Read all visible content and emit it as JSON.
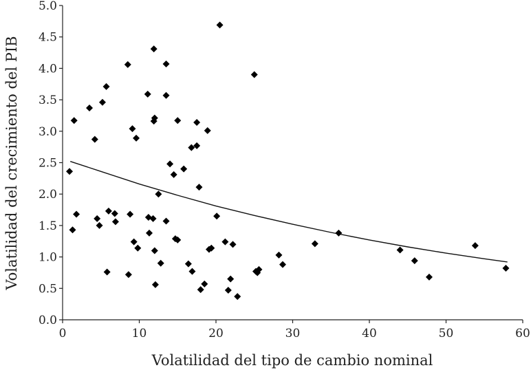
{
  "chart_data": {
    "type": "scatter",
    "xlabel": "Volatilidad del tipo de cambio nominal",
    "ylabel": "Volatilidad del crecimiento del PIB",
    "xlim": [
      0,
      60
    ],
    "ylim": [
      0,
      5
    ],
    "x_ticks": [
      "0",
      "10",
      "20",
      "30",
      "40",
      "50",
      "60"
    ],
    "y_ticks": [
      "0.0",
      "0.5",
      "1.0",
      "1.5",
      "2.0",
      "2.5",
      "3.0",
      "3.5",
      "4.0",
      "4.5",
      "5.0"
    ],
    "grid": false,
    "legend": "none",
    "points": [
      {
        "x": 0.9,
        "y": 2.36
      },
      {
        "x": 1.3,
        "y": 1.43
      },
      {
        "x": 1.5,
        "y": 3.17
      },
      {
        "x": 1.8,
        "y": 1.68
      },
      {
        "x": 3.5,
        "y": 3.37
      },
      {
        "x": 4.2,
        "y": 2.87
      },
      {
        "x": 4.5,
        "y": 1.61
      },
      {
        "x": 4.8,
        "y": 1.5
      },
      {
        "x": 5.2,
        "y": 3.46
      },
      {
        "x": 5.7,
        "y": 3.71
      },
      {
        "x": 5.8,
        "y": 0.76
      },
      {
        "x": 6.0,
        "y": 1.73
      },
      {
        "x": 6.8,
        "y": 1.69
      },
      {
        "x": 6.9,
        "y": 1.56
      },
      {
        "x": 8.5,
        "y": 4.06
      },
      {
        "x": 8.6,
        "y": 0.72
      },
      {
        "x": 8.8,
        "y": 1.68
      },
      {
        "x": 9.1,
        "y": 3.04
      },
      {
        "x": 9.3,
        "y": 1.24
      },
      {
        "x": 9.6,
        "y": 2.89
      },
      {
        "x": 9.8,
        "y": 1.14
      },
      {
        "x": 11.1,
        "y": 3.59
      },
      {
        "x": 11.2,
        "y": 1.63
      },
      {
        "x": 11.3,
        "y": 1.38
      },
      {
        "x": 11.8,
        "y": 1.61
      },
      {
        "x": 11.9,
        "y": 4.31
      },
      {
        "x": 11.9,
        "y": 3.16
      },
      {
        "x": 12.0,
        "y": 3.21
      },
      {
        "x": 12.0,
        "y": 1.1
      },
      {
        "x": 12.1,
        "y": 0.56
      },
      {
        "x": 12.5,
        "y": 2.0
      },
      {
        "x": 12.8,
        "y": 0.9
      },
      {
        "x": 13.5,
        "y": 4.07
      },
      {
        "x": 13.5,
        "y": 3.57
      },
      {
        "x": 13.5,
        "y": 1.57
      },
      {
        "x": 14.0,
        "y": 2.48
      },
      {
        "x": 14.5,
        "y": 2.31
      },
      {
        "x": 14.7,
        "y": 1.29
      },
      {
        "x": 15.0,
        "y": 3.17
      },
      {
        "x": 15.0,
        "y": 1.27
      },
      {
        "x": 15.8,
        "y": 2.4
      },
      {
        "x": 16.4,
        "y": 0.89
      },
      {
        "x": 16.8,
        "y": 2.74
      },
      {
        "x": 16.9,
        "y": 0.77
      },
      {
        "x": 17.5,
        "y": 3.14
      },
      {
        "x": 17.5,
        "y": 2.77
      },
      {
        "x": 17.8,
        "y": 2.11
      },
      {
        "x": 18.0,
        "y": 0.48
      },
      {
        "x": 18.5,
        "y": 0.57
      },
      {
        "x": 18.9,
        "y": 3.01
      },
      {
        "x": 19.1,
        "y": 1.12
      },
      {
        "x": 19.4,
        "y": 1.14
      },
      {
        "x": 20.1,
        "y": 1.65
      },
      {
        "x": 20.5,
        "y": 4.69
      },
      {
        "x": 21.2,
        "y": 1.24
      },
      {
        "x": 21.6,
        "y": 0.47
      },
      {
        "x": 21.9,
        "y": 0.65
      },
      {
        "x": 22.2,
        "y": 1.2
      },
      {
        "x": 22.8,
        "y": 0.37
      },
      {
        "x": 25.0,
        "y": 3.9
      },
      {
        "x": 25.2,
        "y": 0.77
      },
      {
        "x": 25.4,
        "y": 0.75
      },
      {
        "x": 25.6,
        "y": 0.8
      },
      {
        "x": 28.2,
        "y": 1.03
      },
      {
        "x": 28.7,
        "y": 0.88
      },
      {
        "x": 32.9,
        "y": 1.21
      },
      {
        "x": 36.0,
        "y": 1.38
      },
      {
        "x": 44.0,
        "y": 1.11
      },
      {
        "x": 45.9,
        "y": 0.94
      },
      {
        "x": 47.8,
        "y": 0.68
      },
      {
        "x": 53.8,
        "y": 1.18
      },
      {
        "x": 57.8,
        "y": 0.82
      }
    ],
    "trendline": {
      "type": "exponential",
      "x": [
        1,
        5,
        10,
        15,
        20,
        25,
        30,
        35,
        40,
        45,
        50,
        55,
        58
      ],
      "y": [
        2.52,
        2.36,
        2.16,
        1.98,
        1.81,
        1.66,
        1.52,
        1.39,
        1.27,
        1.16,
        1.06,
        0.97,
        0.92
      ]
    }
  }
}
